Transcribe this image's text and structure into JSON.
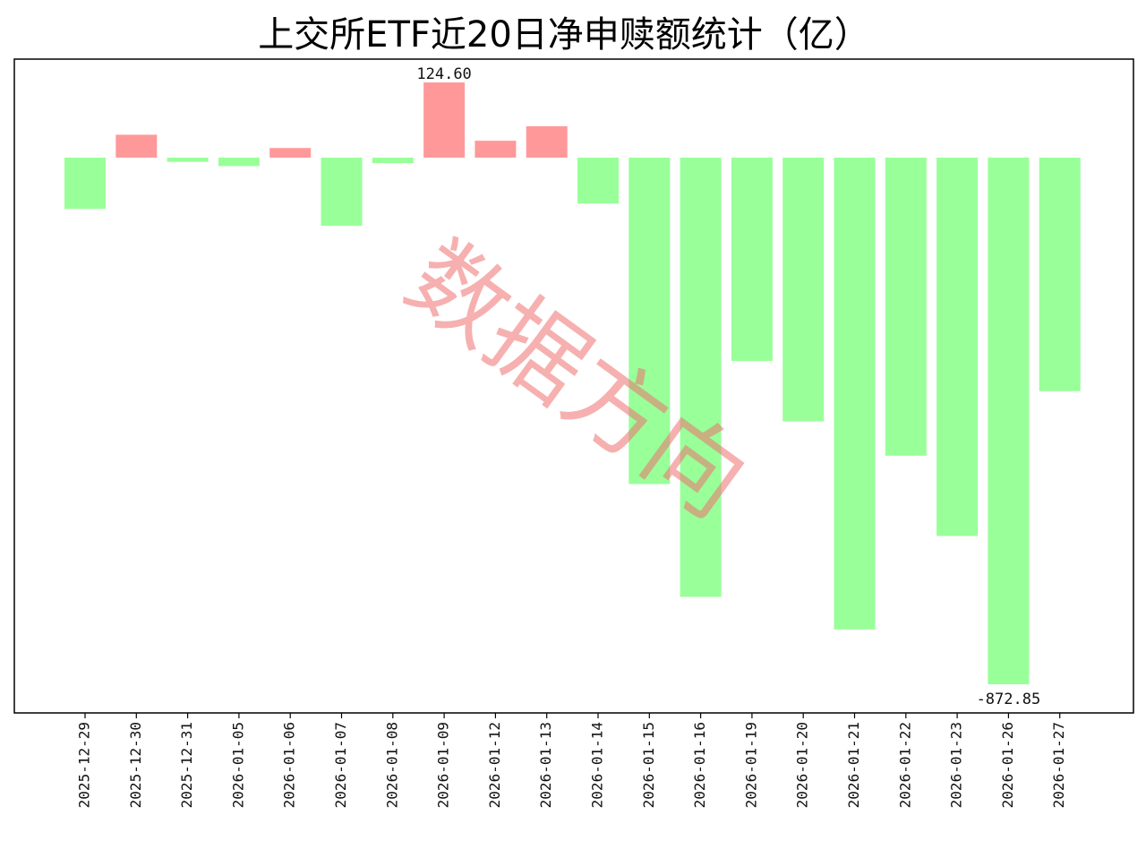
{
  "chart_data": {
    "type": "bar",
    "title": "上交所ETF近20日净申赎额统计（亿）",
    "xlabel": "",
    "ylabel": "",
    "categories": [
      "2025-12-29",
      "2025-12-30",
      "2025-12-31",
      "2026-01-05",
      "2026-01-06",
      "2026-01-07",
      "2026-01-08",
      "2026-01-09",
      "2026-01-12",
      "2026-01-13",
      "2026-01-14",
      "2026-01-15",
      "2026-01-16",
      "2026-01-19",
      "2026-01-20",
      "2026-01-21",
      "2026-01-22",
      "2026-01-23",
      "2026-01-26",
      "2026-01-27"
    ],
    "values": [
      -85,
      38,
      -7,
      -14,
      16,
      -113,
      -9,
      124.6,
      28,
      52,
      -76,
      -541,
      -728,
      -337,
      -437,
      -782,
      -494,
      -627,
      -872.85,
      -387
    ],
    "ylim": [
      -880,
      130
    ],
    "data_labels": [
      {
        "category": "2026-01-09",
        "text": "124.60"
      },
      {
        "category": "2026-01-26",
        "text": "-872.85"
      }
    ],
    "colors": {
      "positive": "#ff9999",
      "negative": "#99ff99",
      "axes": "#000000"
    },
    "grid": false,
    "legend": "none",
    "y_ticks_visible": false
  },
  "watermark": {
    "text": "数据方向",
    "color": "#f07070"
  }
}
